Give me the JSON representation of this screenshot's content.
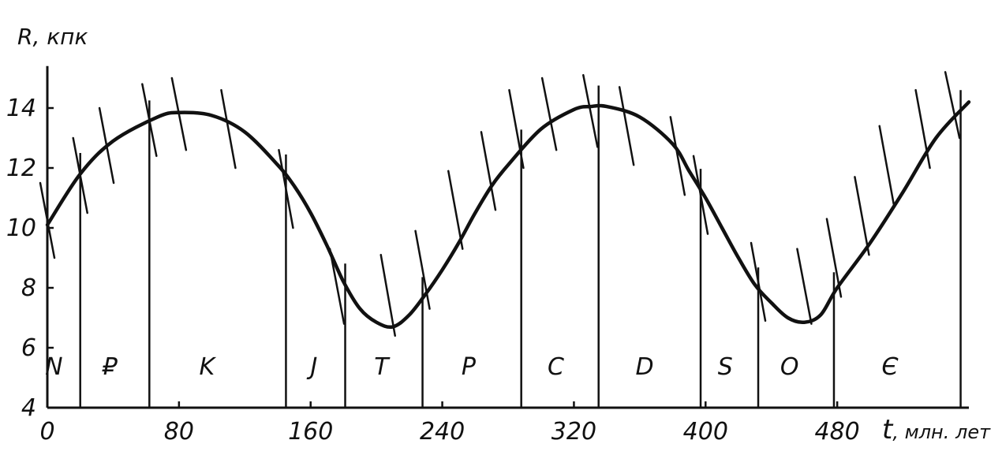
{
  "chart_data": {
    "type": "line",
    "title": "",
    "ylabel": "R, кпк",
    "xlabel_symbol": "t",
    "xlabel_unit": ", млн. лет",
    "xlim": [
      0,
      560
    ],
    "ylim": [
      4,
      15
    ],
    "xticks": [
      "0",
      "80",
      "160",
      "240",
      "320",
      "400",
      "480"
    ],
    "yticks": [
      "4",
      "6",
      "8",
      "10",
      "12",
      "14"
    ],
    "grid": false,
    "line_color": "#111111",
    "series": [
      {
        "x": [
          0,
          20,
          40,
          67,
          80,
          100,
          120,
          140,
          150,
          160,
          170,
          180,
          190,
          200,
          210,
          220,
          230,
          240,
          250,
          260,
          270,
          280,
          300,
          320,
          330,
          340,
          360,
          380,
          390,
          400,
          410,
          420,
          430,
          440,
          450,
          460,
          470,
          480,
          500,
          520,
          540,
          560
        ],
        "values": [
          10.1,
          11.8,
          12.9,
          13.7,
          13.85,
          13.75,
          13.2,
          12.1,
          11.4,
          10.5,
          9.4,
          8.2,
          7.3,
          6.85,
          6.7,
          7.1,
          7.8,
          8.6,
          9.5,
          10.5,
          11.4,
          12.1,
          13.3,
          13.95,
          14.05,
          14.05,
          13.7,
          12.8,
          11.9,
          11.0,
          10.0,
          9.0,
          8.1,
          7.5,
          7.0,
          6.85,
          7.1,
          8.0,
          9.5,
          11.2,
          13.0,
          14.2
        ]
      }
    ],
    "period_boundaries": [
      20,
      62,
      145,
      181,
      228,
      288,
      335,
      397,
      432,
      478,
      555
    ],
    "periods": [
      {
        "label": "N",
        "x": 4
      },
      {
        "label": "₽",
        "x": 38
      },
      {
        "label": "K",
        "x": 97
      },
      {
        "label": "J",
        "x": 162
      },
      {
        "label": "T",
        "x": 203
      },
      {
        "label": "P",
        "x": 256
      },
      {
        "label": "C",
        "x": 309
      },
      {
        "label": "D",
        "x": 363
      },
      {
        "label": "S",
        "x": 412
      },
      {
        "label": "O",
        "x": 451
      },
      {
        "label": "Є",
        "x": 512
      }
    ],
    "error_bars": [
      {
        "x": 0,
        "lo": 9.0,
        "hi": 11.5
      },
      {
        "x": 20,
        "lo": 10.5,
        "hi": 13.0
      },
      {
        "x": 36,
        "lo": 11.5,
        "hi": 14.0
      },
      {
        "x": 62,
        "lo": 12.4,
        "hi": 14.8
      },
      {
        "x": 80,
        "lo": 12.6,
        "hi": 15.0
      },
      {
        "x": 110,
        "lo": 12.0,
        "hi": 14.6
      },
      {
        "x": 145,
        "lo": 10.0,
        "hi": 12.6
      },
      {
        "x": 176,
        "lo": 6.8,
        "hi": 9.3
      },
      {
        "x": 207,
        "lo": 6.4,
        "hi": 9.1
      },
      {
        "x": 228,
        "lo": 7.3,
        "hi": 9.9
      },
      {
        "x": 248,
        "lo": 9.3,
        "hi": 11.9
      },
      {
        "x": 268,
        "lo": 10.6,
        "hi": 13.2
      },
      {
        "x": 285,
        "lo": 12.0,
        "hi": 14.6
      },
      {
        "x": 305,
        "lo": 12.6,
        "hi": 15.0
      },
      {
        "x": 330,
        "lo": 12.7,
        "hi": 15.1
      },
      {
        "x": 352,
        "lo": 12.1,
        "hi": 14.7
      },
      {
        "x": 383,
        "lo": 11.1,
        "hi": 13.7
      },
      {
        "x": 397,
        "lo": 9.8,
        "hi": 12.4
      },
      {
        "x": 432,
        "lo": 6.9,
        "hi": 9.5
      },
      {
        "x": 460,
        "lo": 6.8,
        "hi": 9.3
      },
      {
        "x": 478,
        "lo": 7.7,
        "hi": 10.3
      },
      {
        "x": 495,
        "lo": 9.1,
        "hi": 11.7
      },
      {
        "x": 510,
        "lo": 10.8,
        "hi": 13.4
      },
      {
        "x": 532,
        "lo": 12.0,
        "hi": 14.6
      },
      {
        "x": 550,
        "lo": 13.0,
        "hi": 15.2
      }
    ]
  }
}
